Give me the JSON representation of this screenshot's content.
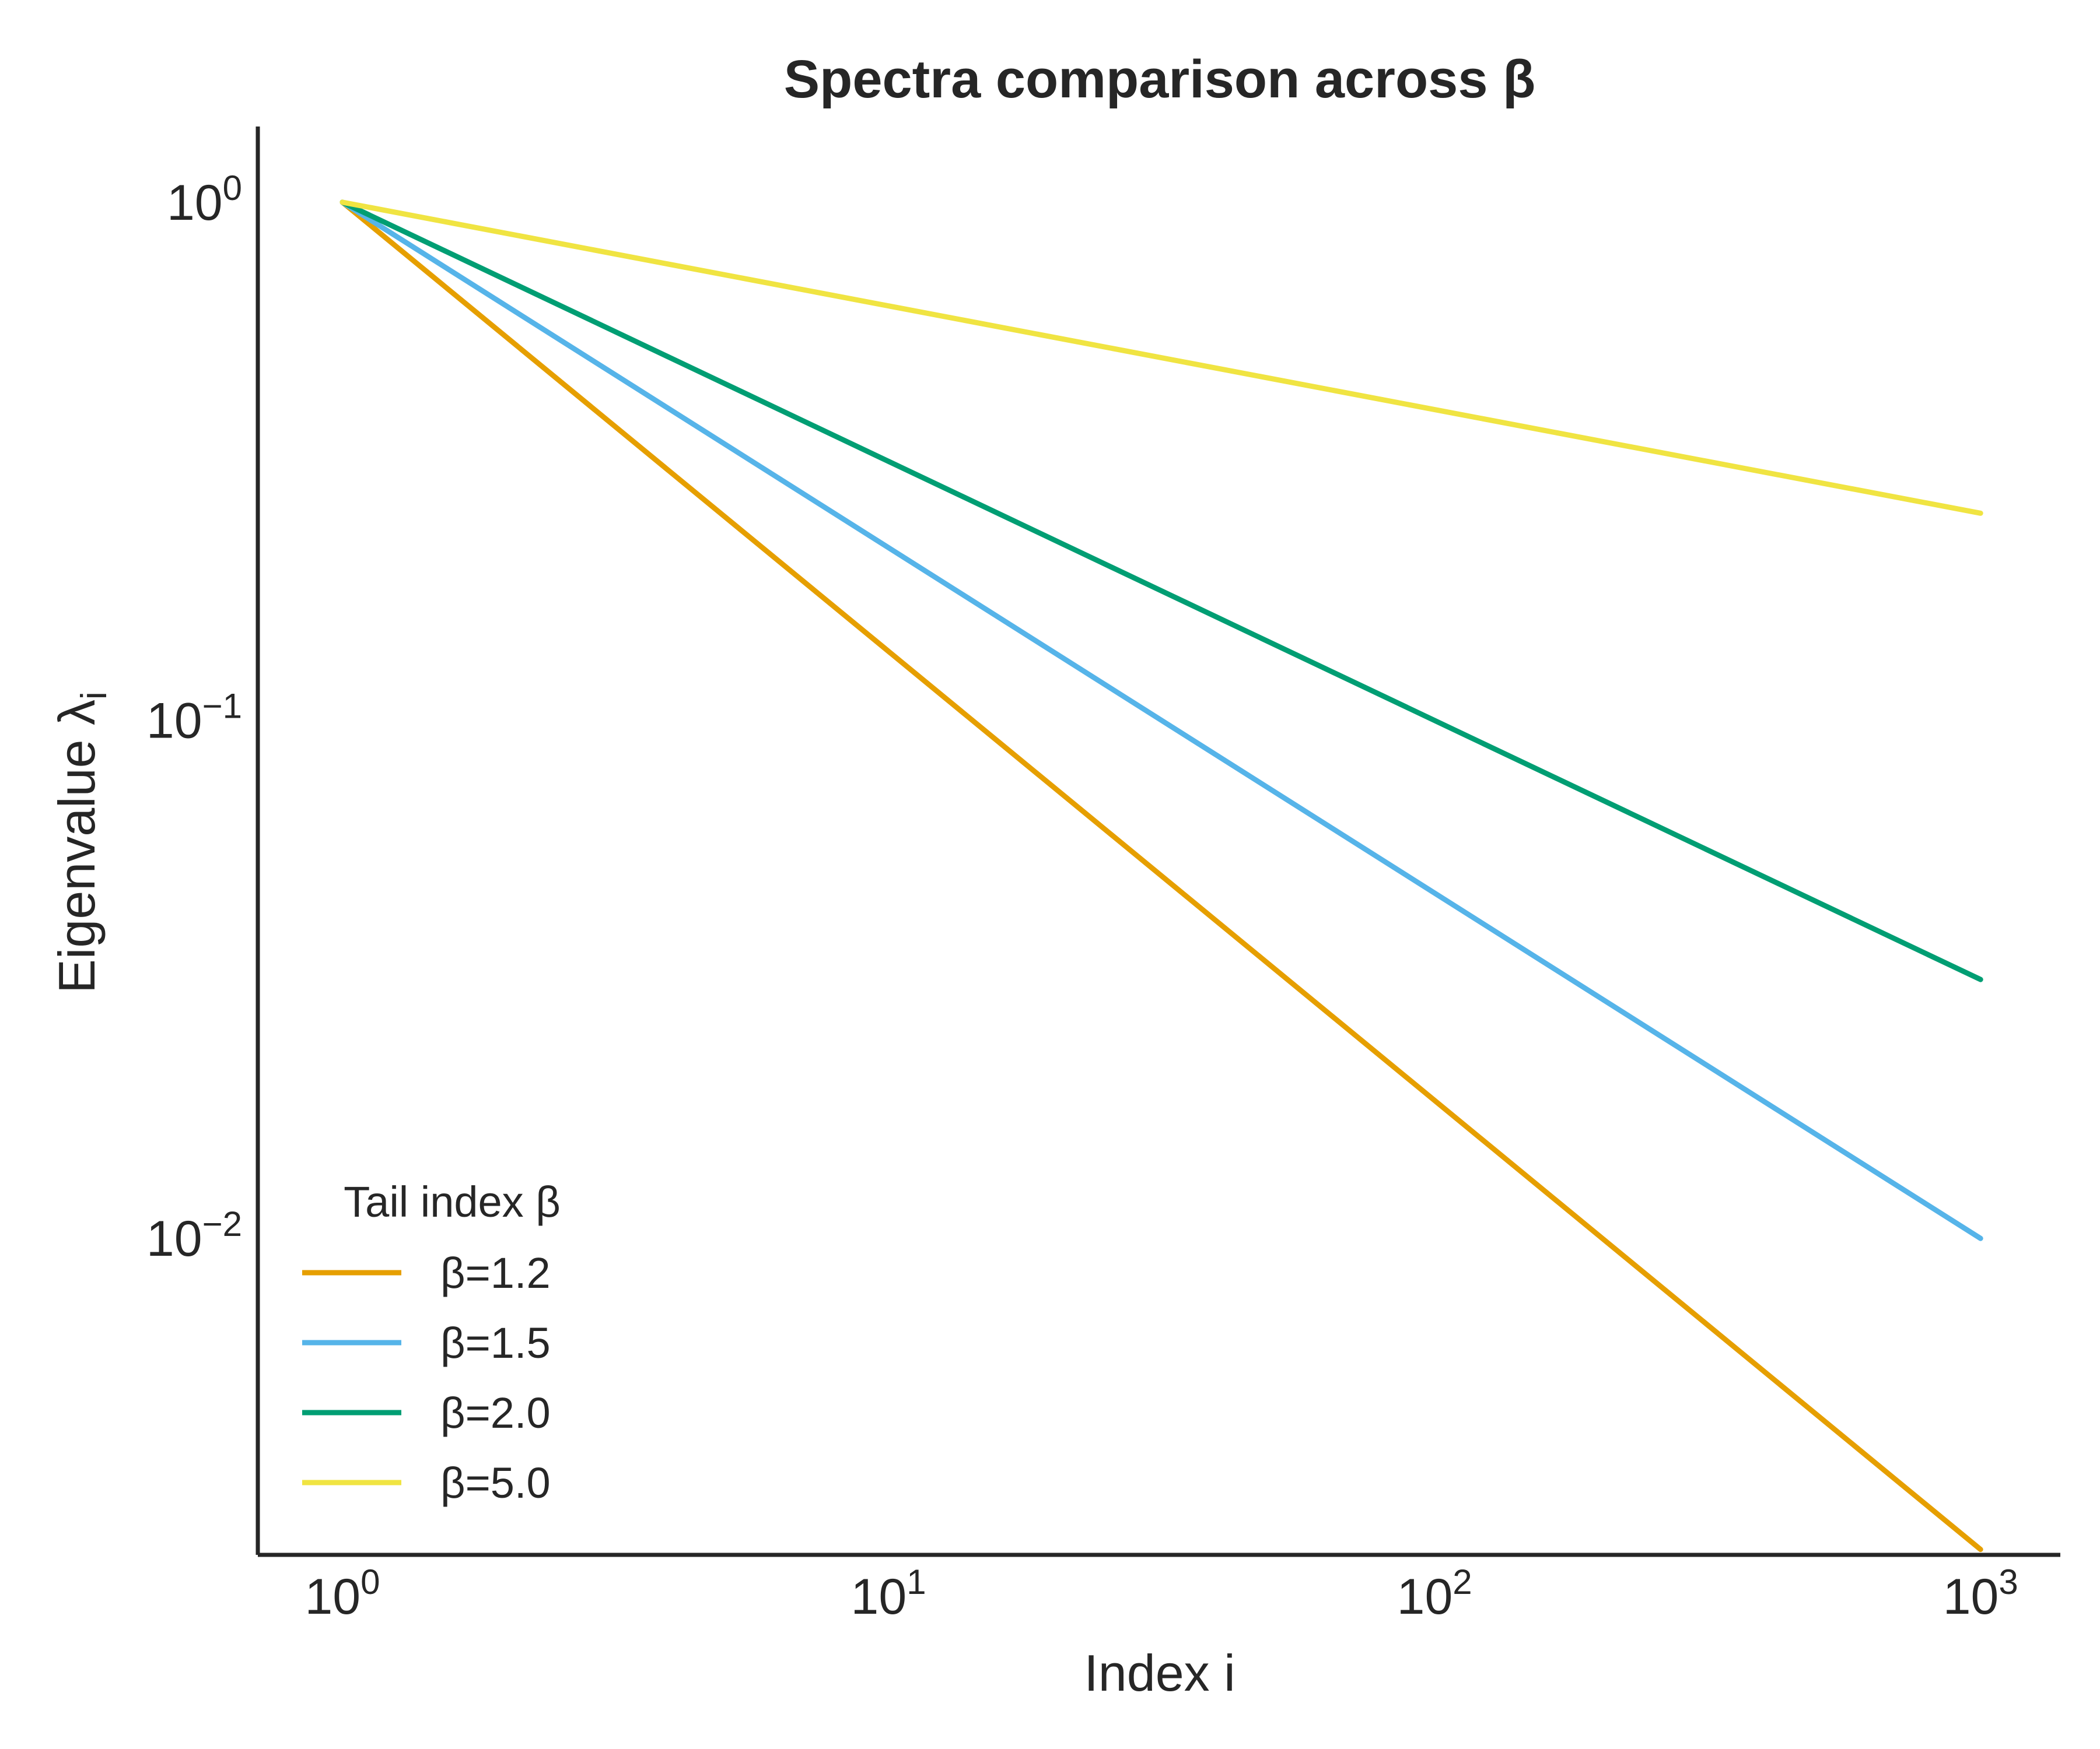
{
  "chart_data": {
    "type": "line",
    "title": "Spectra comparison across β",
    "xlabel": "Index i",
    "ylabel": "Eigenvalue λi",
    "xscale": "log",
    "yscale": "log",
    "xlim": [
      0.7,
      1400
    ],
    "ylim": [
      0.00245,
      1.4
    ],
    "xticks": [
      {
        "value": 1,
        "base": "10",
        "exp": "0"
      },
      {
        "value": 10,
        "base": "10",
        "exp": "1"
      },
      {
        "value": 100,
        "base": "10",
        "exp": "2"
      },
      {
        "value": 1000,
        "base": "10",
        "exp": "3"
      }
    ],
    "yticks": [
      {
        "value": 1,
        "base": "10",
        "exp": "0"
      },
      {
        "value": 0.1,
        "base": "10",
        "exp": "−1"
      },
      {
        "value": 0.01,
        "base": "10",
        "exp": "−2"
      }
    ],
    "x": [
      1,
      1000
    ],
    "series": [
      {
        "name": "β=1.2",
        "color": "#E69F00",
        "values": [
          1.0,
          0.00251
        ]
      },
      {
        "name": "β=1.5",
        "color": "#56B4E9",
        "values": [
          1.0,
          0.01
        ]
      },
      {
        "name": "β=2.0",
        "color": "#009E73",
        "values": [
          1.0,
          0.0316
        ]
      },
      {
        "name": "β=5.0",
        "color": "#F0E442",
        "values": [
          1.0,
          0.251
        ]
      }
    ],
    "legend": {
      "title": "Tail index β",
      "position": "lower-left"
    },
    "grid": false
  }
}
